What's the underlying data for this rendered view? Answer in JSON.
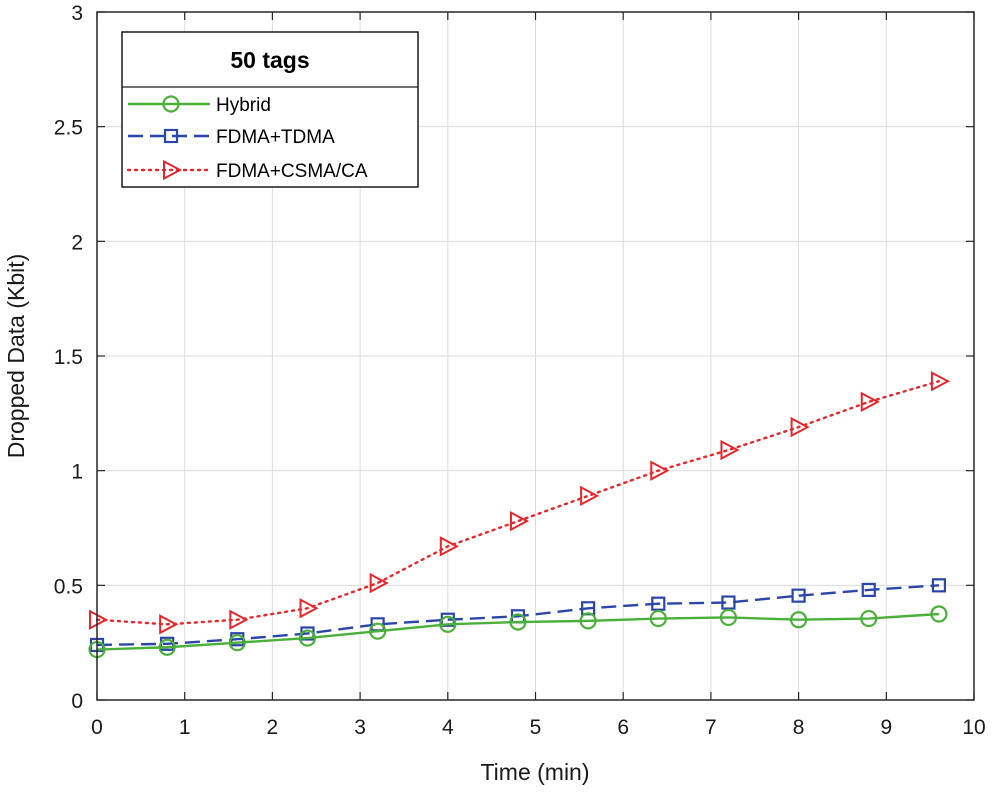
{
  "chart_data": {
    "type": "line",
    "title": "",
    "xlabel": "Time (min)",
    "ylabel": "Dropped Data (Kbit)",
    "xlim": [
      0,
      10
    ],
    "ylim": [
      0,
      3
    ],
    "xticks": [
      0,
      1,
      2,
      3,
      4,
      5,
      6,
      7,
      8,
      9,
      10
    ],
    "yticks": [
      0,
      0.5,
      1,
      1.5,
      2,
      2.5,
      3
    ],
    "xtick_labels": [
      "0",
      "1",
      "2",
      "3",
      "4",
      "5",
      "6",
      "7",
      "8",
      "9",
      "10"
    ],
    "ytick_labels": [
      "0",
      "0.5",
      "1",
      "1.5",
      "2",
      "2.5",
      "3"
    ],
    "grid": true,
    "legend": {
      "title": "50 tags",
      "position": "top-left"
    },
    "x": [
      0,
      0.8,
      1.6,
      2.4,
      3.2,
      4.0,
      4.8,
      5.6,
      6.4,
      7.2,
      8.0,
      8.8,
      9.6
    ],
    "series": [
      {
        "name": "Hybrid",
        "color": "#4bb03a",
        "dash": "solid",
        "marker": "circle",
        "values": [
          0.22,
          0.23,
          0.25,
          0.27,
          0.3,
          0.33,
          0.34,
          0.345,
          0.355,
          0.36,
          0.35,
          0.355,
          0.375
        ]
      },
      {
        "name": "FDMA+TDMA",
        "color": "#2b46a8",
        "dash": "dashed",
        "marker": "square",
        "values": [
          0.24,
          0.245,
          0.265,
          0.29,
          0.33,
          0.35,
          0.365,
          0.4,
          0.42,
          0.425,
          0.455,
          0.48,
          0.5
        ]
      },
      {
        "name": "FDMA+CSMA/CA",
        "color": "#e8262a",
        "dash": "dotted",
        "marker": "triangle-right",
        "values": [
          0.35,
          0.33,
          0.35,
          0.4,
          0.51,
          0.67,
          0.78,
          0.89,
          1.0,
          1.09,
          1.19,
          1.3,
          1.39
        ]
      }
    ]
  }
}
